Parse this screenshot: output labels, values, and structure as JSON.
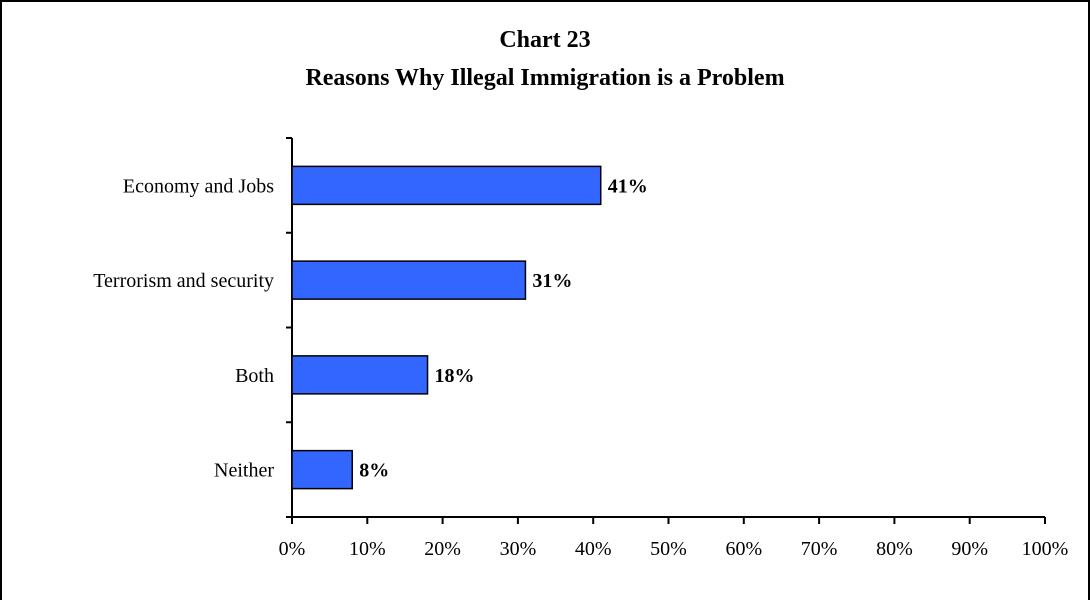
{
  "chart_data": {
    "type": "bar",
    "orientation": "horizontal",
    "title": "Chart 23",
    "subtitle": "Reasons Why Illegal Immigration is a Problem",
    "categories": [
      "Economy and Jobs",
      "Terrorism and security",
      "Both",
      "Neither"
    ],
    "values": [
      41,
      31,
      18,
      8
    ],
    "data_labels": [
      "41%",
      "31%",
      "18%",
      "8%"
    ],
    "xlim": [
      0,
      100
    ],
    "xticks": [
      "0%",
      "10%",
      "20%",
      "30%",
      "40%",
      "50%",
      "60%",
      "70%",
      "80%",
      "90%",
      "100%"
    ],
    "xlabel": "",
    "ylabel": "",
    "grid": false,
    "legend": "none",
    "bar_color": "#3366FF"
  }
}
